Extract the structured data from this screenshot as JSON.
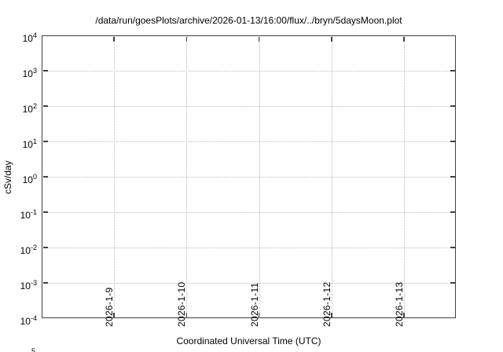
{
  "chart_data": {
    "type": "line",
    "title": "/data/run/goesPlots/archive/2026-01-13/16:00/flux/../bryn/5daysMoon.plot",
    "xlabel": "Coordinated Universal Time (UTC)",
    "ylabel": "cSv/day",
    "x_axis": {
      "scale": "time",
      "tick_labels": [
        "2026-1-9",
        "2026-1-10",
        "2026-1-11",
        "2026-1-12",
        "2026-1-13"
      ],
      "tick_label_rotation_deg": -90,
      "grid": "dotted"
    },
    "y_axis": {
      "scale": "log",
      "tick_base": "10",
      "tick_exponents": [
        "4",
        "3",
        "2",
        "1",
        "0",
        "-1",
        "-2",
        "-3",
        "-4"
      ],
      "min": "1e-4",
      "max": "1e4",
      "grid": "dotted"
    },
    "series": [],
    "plot_area_empty": true,
    "legend": "none",
    "clipped_partial_text_bottom_left": "5"
  },
  "colors": {
    "background": "#ffffff",
    "text": "#000000",
    "axis": "#404040",
    "grid": "#bbbbbb"
  }
}
